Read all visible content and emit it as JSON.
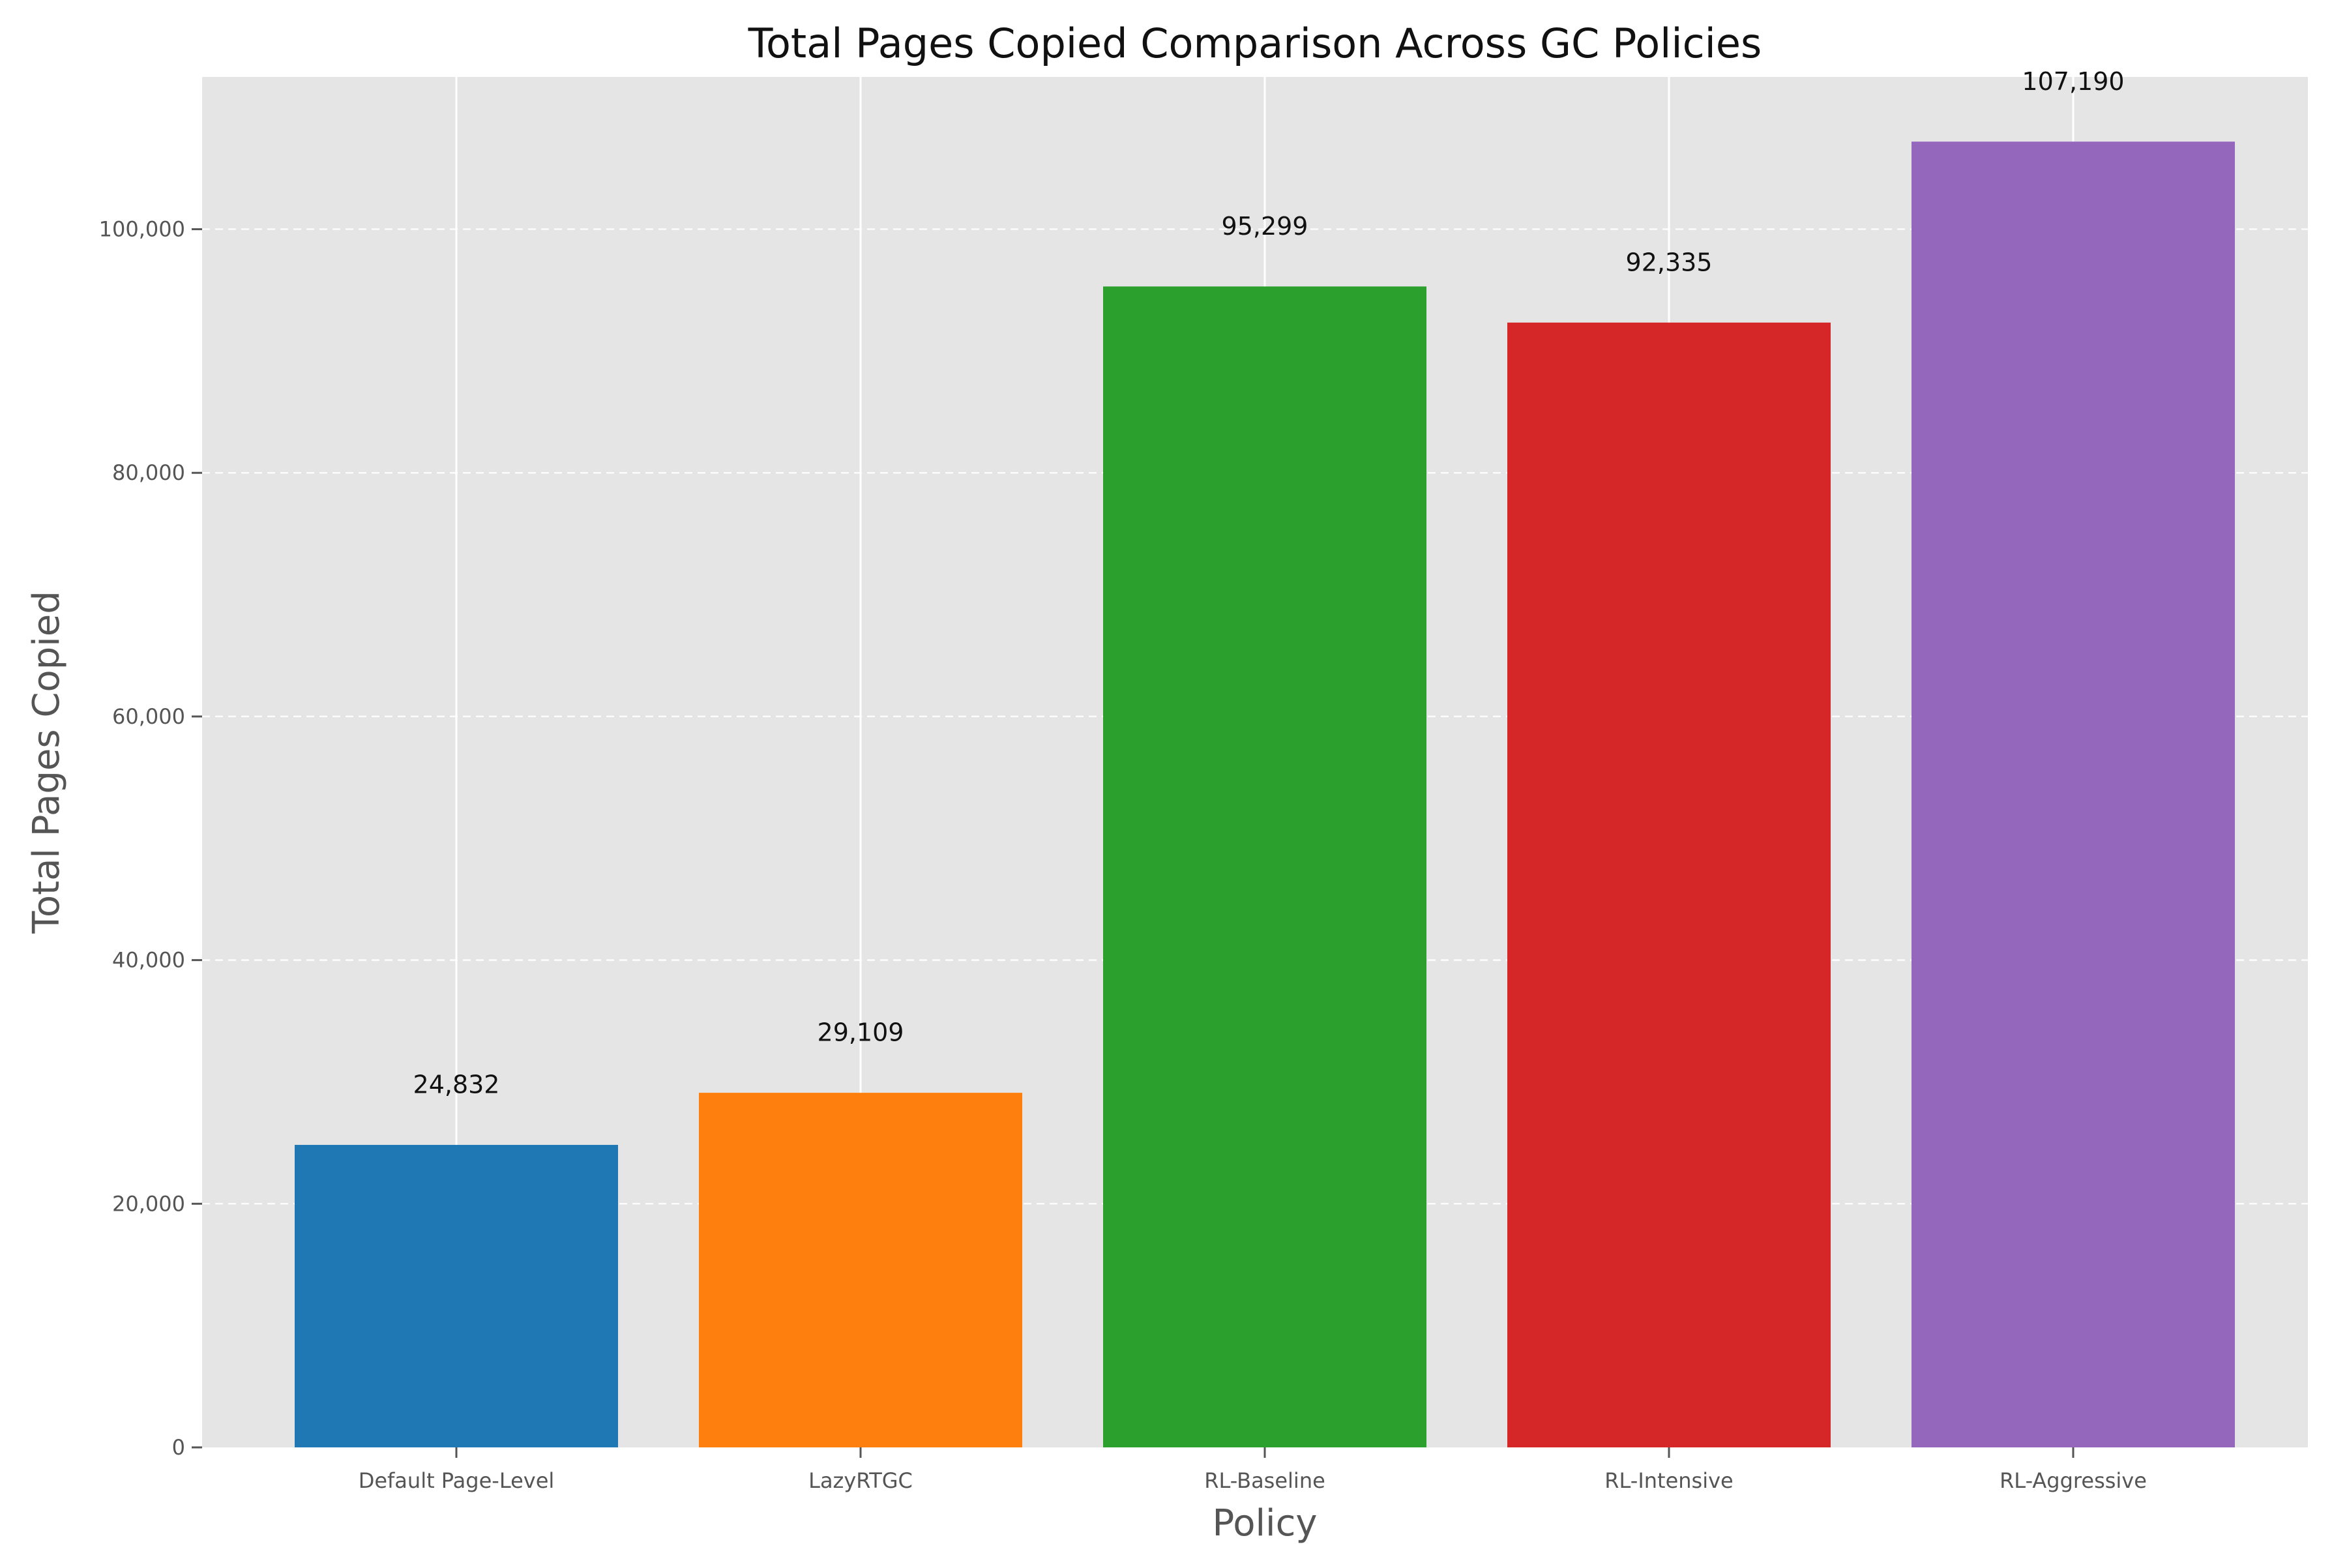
{
  "chart_data": {
    "type": "bar",
    "title": "Total Pages Copied Comparison Across GC Policies",
    "xlabel": "Policy",
    "ylabel": "Total Pages Copied",
    "categories": [
      "Default Page-Level",
      "LazyRTGC",
      "RL-Baseline",
      "RL-Intensive",
      "RL-Aggressive"
    ],
    "values": [
      24832,
      29109,
      95299,
      92335,
      107190
    ],
    "value_labels": [
      "24,832",
      "29,109",
      "95,299",
      "92,335",
      "107,190"
    ],
    "colors": [
      "#1f77b4",
      "#ff7f0e",
      "#2ca02c",
      "#d62728",
      "#9467bd"
    ],
    "ylim": [
      0,
      112500
    ],
    "yticks": [
      0,
      20000,
      40000,
      60000,
      80000,
      100000
    ],
    "ytick_labels": [
      "0",
      "20,000",
      "40,000",
      "60,000",
      "80,000",
      "100,000"
    ],
    "grid": true,
    "legend": "none"
  }
}
